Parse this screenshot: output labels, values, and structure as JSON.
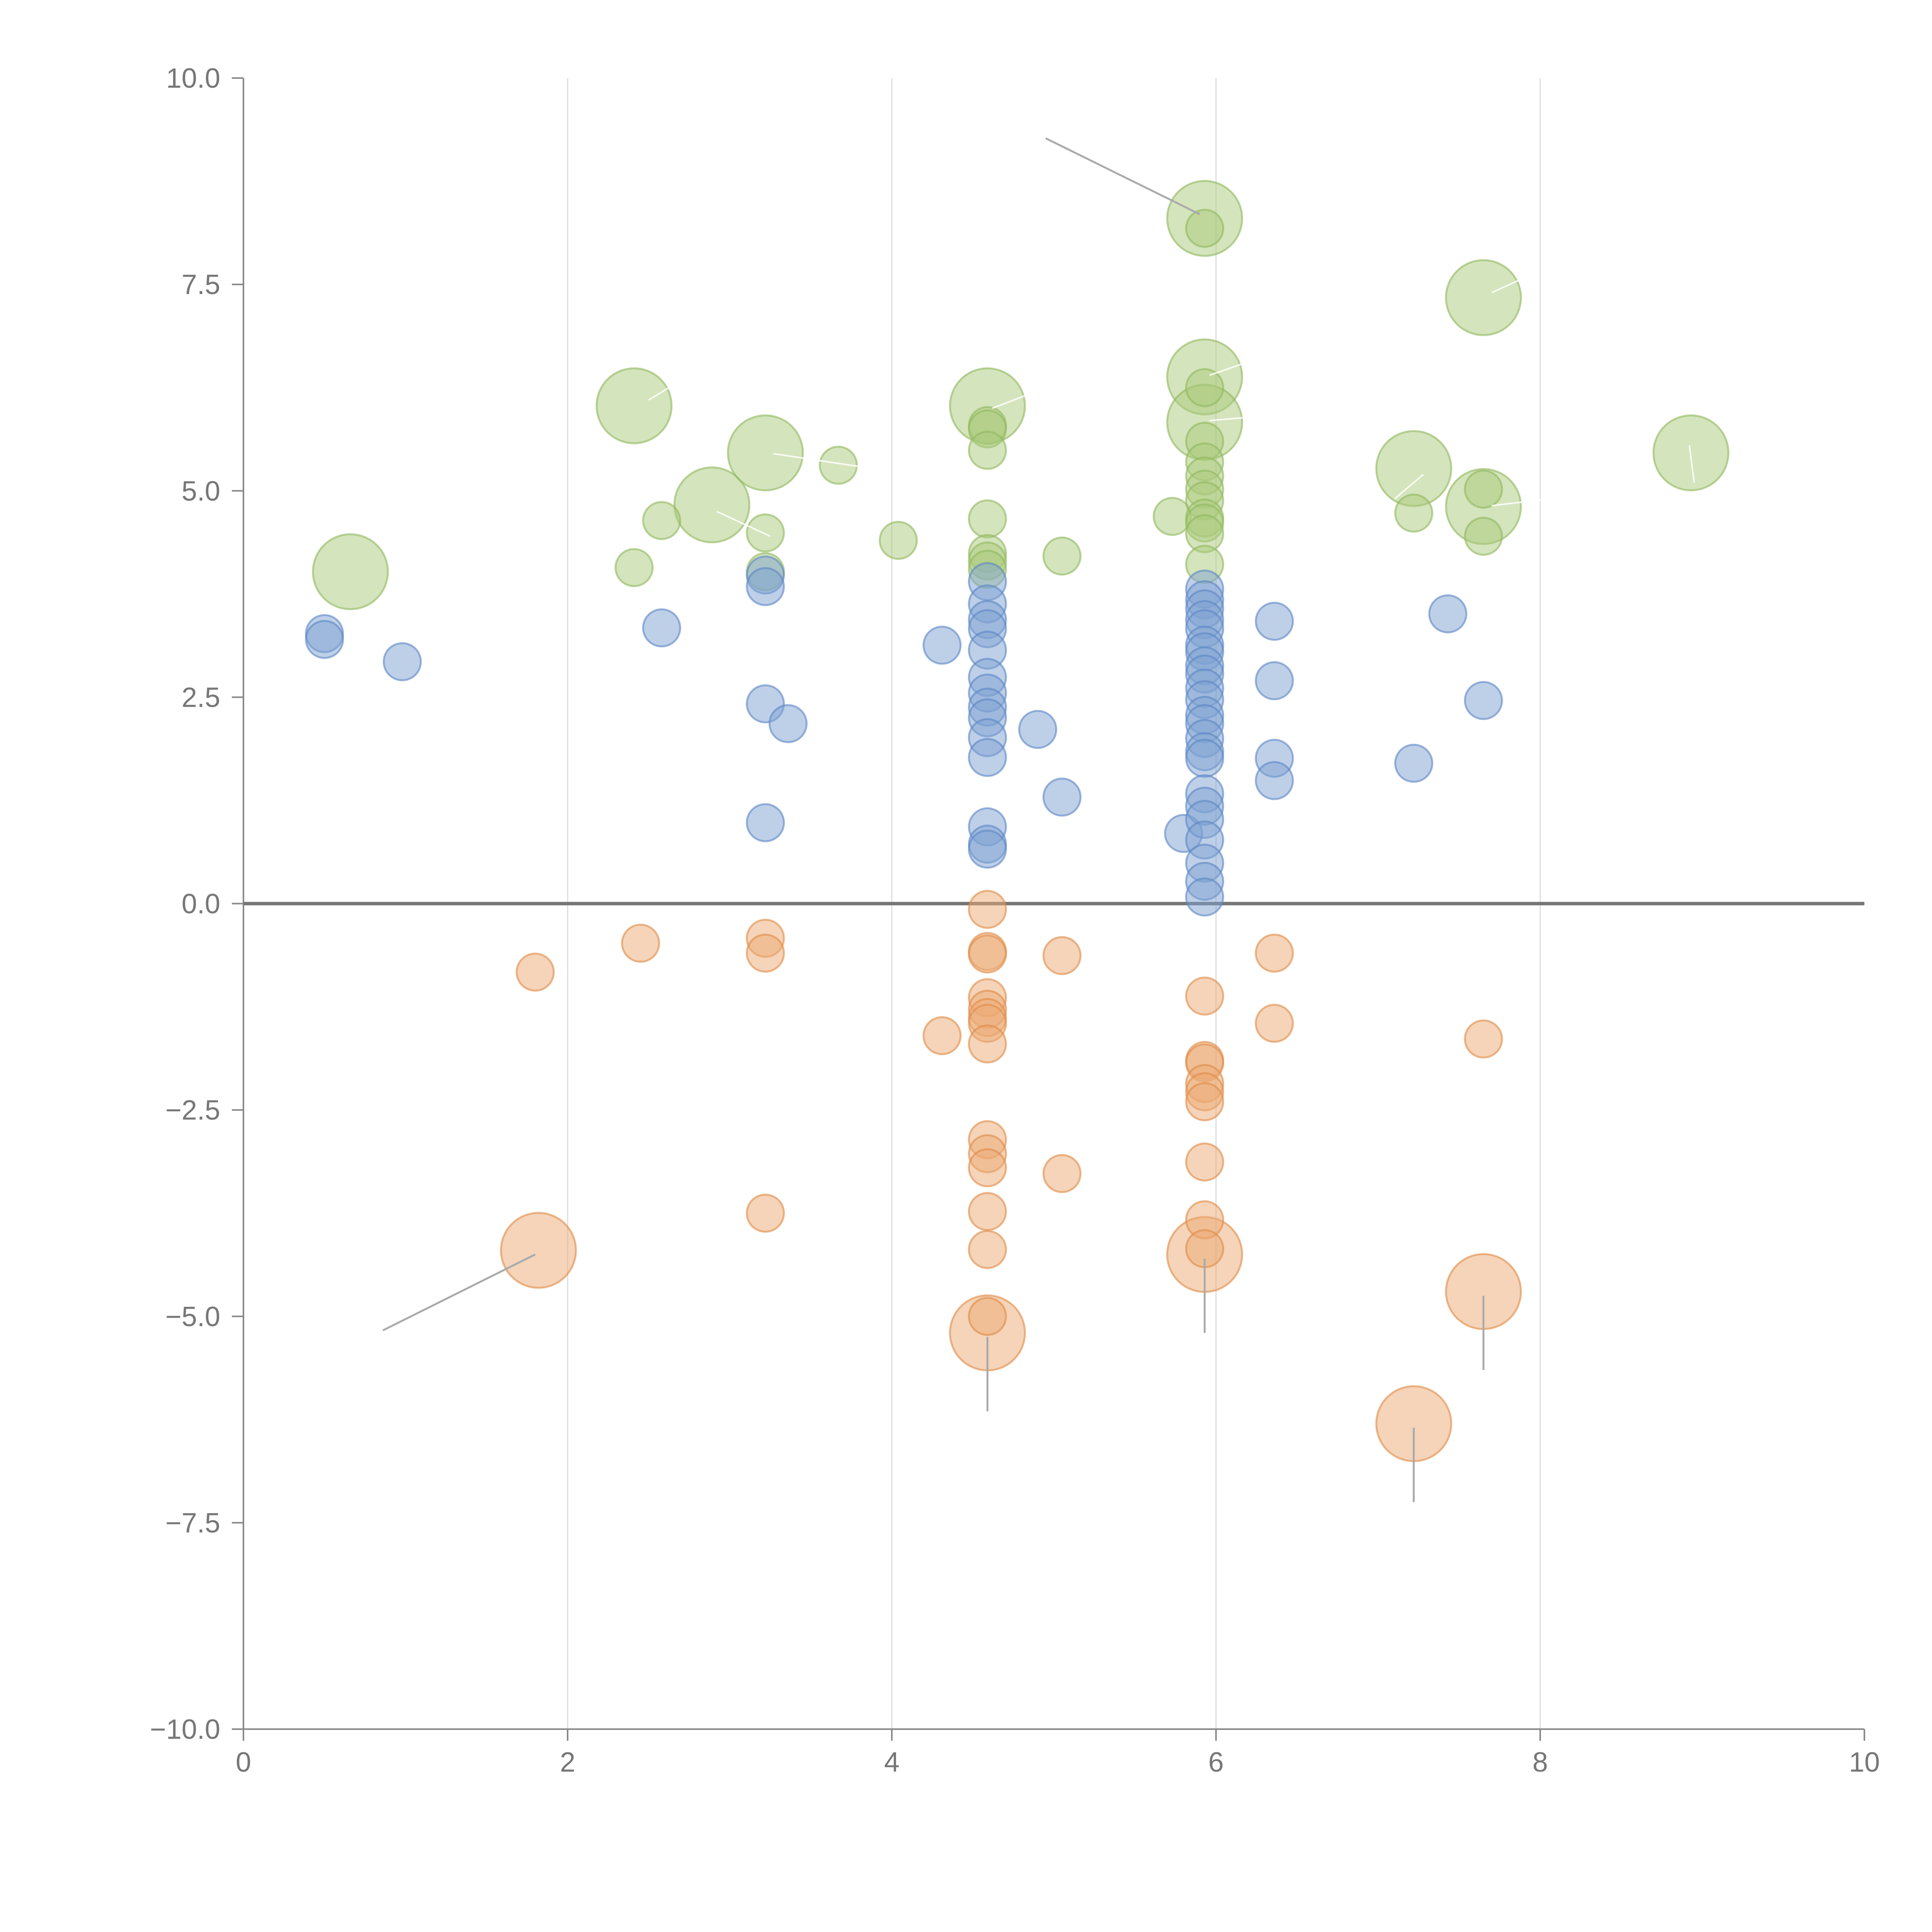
{
  "chart_data": {
    "type": "scatter",
    "title": "",
    "xlabel": "",
    "ylabel": "",
    "xlim": [
      0,
      10
    ],
    "ylim": [
      -10,
      10
    ],
    "grid_x": true,
    "grid_y": false,
    "x_ticks": [
      "0",
      "2",
      "4",
      "6",
      "8",
      "10"
    ],
    "y_ticks": [
      "10.0",
      "7.5",
      "5.0",
      "2.5",
      "0.0",
      "−2.5",
      "−5.0",
      "−7.5",
      "−10.0"
    ],
    "x_tick_values": [
      0,
      2,
      4,
      6,
      8,
      10
    ],
    "y_tick_values": [
      10,
      7.5,
      5,
      2.5,
      0,
      -2.5,
      -5,
      -7.5,
      -10
    ],
    "series": [
      {
        "name": "green",
        "color": "#a9c97a",
        "stroke": "#8fb85e",
        "points": [
          [
            0.66,
            4.02,
            3
          ],
          [
            2.41,
            6.03,
            3
          ],
          [
            2.89,
            4.83,
            3
          ],
          [
            3.22,
            5.46,
            3
          ],
          [
            4.59,
            6.03,
            3
          ],
          [
            5.93,
            8.3,
            3
          ],
          [
            5.93,
            6.38,
            3
          ],
          [
            5.93,
            5.83,
            3
          ],
          [
            7.22,
            5.27,
            3
          ],
          [
            7.65,
            7.34,
            3
          ],
          [
            7.65,
            4.81,
            3
          ],
          [
            8.93,
            5.46,
            3
          ],
          [
            2.41,
            4.07,
            1
          ],
          [
            2.58,
            4.64,
            1
          ],
          [
            3.22,
            4.49,
            1
          ],
          [
            3.22,
            4.02,
            1
          ],
          [
            3.67,
            5.31,
            1
          ],
          [
            4.04,
            4.4,
            1
          ],
          [
            4.59,
            5.79,
            1
          ],
          [
            4.59,
            5.75,
            1
          ],
          [
            4.59,
            5.49,
            1
          ],
          [
            4.59,
            4.66,
            1
          ],
          [
            4.59,
            4.24,
            1
          ],
          [
            4.59,
            4.15,
            1
          ],
          [
            4.59,
            4.05,
            1
          ],
          [
            5.05,
            4.21,
            1
          ],
          [
            5.73,
            4.69,
            1
          ],
          [
            5.93,
            8.18,
            1
          ],
          [
            5.93,
            6.25,
            1
          ],
          [
            5.93,
            5.6,
            1
          ],
          [
            5.93,
            5.35,
            1
          ],
          [
            5.93,
            5.18,
            1
          ],
          [
            5.93,
            5.02,
            1
          ],
          [
            5.93,
            4.88,
            1
          ],
          [
            5.93,
            4.67,
            1
          ],
          [
            5.93,
            4.61,
            1
          ],
          [
            5.93,
            4.48,
            1
          ],
          [
            5.93,
            4.11,
            1
          ],
          [
            7.22,
            4.73,
            1
          ],
          [
            7.65,
            5.02,
            1
          ],
          [
            7.65,
            4.45,
            1
          ]
        ]
      },
      {
        "name": "blue",
        "color": "#7ea1d2",
        "stroke": "#5b85c4",
        "points": [
          [
            0.5,
            3.27,
            1
          ],
          [
            0.5,
            3.2,
            1
          ],
          [
            0.98,
            2.93,
            1
          ],
          [
            2.58,
            3.34,
            1
          ],
          [
            3.22,
            3.98,
            1
          ],
          [
            3.22,
            3.84,
            1
          ],
          [
            3.22,
            2.42,
            1
          ],
          [
            3.36,
            2.18,
            1
          ],
          [
            3.22,
            0.98,
            1
          ],
          [
            4.31,
            3.13,
            1
          ],
          [
            4.59,
            3.9,
            1
          ],
          [
            4.59,
            3.63,
            1
          ],
          [
            4.59,
            3.44,
            1
          ],
          [
            4.59,
            3.33,
            1
          ],
          [
            4.59,
            3.07,
            1
          ],
          [
            4.59,
            2.74,
            1
          ],
          [
            4.59,
            2.55,
            1
          ],
          [
            4.59,
            2.38,
            1
          ],
          [
            4.59,
            2.25,
            1
          ],
          [
            4.59,
            2.01,
            1
          ],
          [
            4.59,
            1.77,
            1
          ],
          [
            4.59,
            0.93,
            1
          ],
          [
            4.59,
            0.72,
            1
          ],
          [
            4.59,
            0.66,
            1
          ],
          [
            4.9,
            2.11,
            1
          ],
          [
            5.05,
            1.29,
            1
          ],
          [
            5.8,
            0.85,
            1
          ],
          [
            5.93,
            3.81,
            1
          ],
          [
            5.93,
            3.68,
            1
          ],
          [
            5.93,
            3.57,
            1
          ],
          [
            5.93,
            3.44,
            1
          ],
          [
            5.93,
            3.33,
            1
          ],
          [
            5.93,
            3.13,
            1
          ],
          [
            5.93,
            3.05,
            1
          ],
          [
            5.93,
            2.88,
            1
          ],
          [
            5.93,
            2.78,
            1
          ],
          [
            5.93,
            2.61,
            1
          ],
          [
            5.93,
            2.47,
            1
          ],
          [
            5.93,
            2.28,
            1
          ],
          [
            5.93,
            2.18,
            1
          ],
          [
            5.93,
            2.0,
            1
          ],
          [
            5.93,
            1.84,
            1
          ],
          [
            5.93,
            1.76,
            1
          ],
          [
            5.93,
            1.33,
            1
          ],
          [
            5.93,
            1.18,
            1
          ],
          [
            5.93,
            1.02,
            1
          ],
          [
            5.93,
            0.77,
            1
          ],
          [
            5.93,
            0.49,
            1
          ],
          [
            5.93,
            0.27,
            1
          ],
          [
            5.93,
            0.08,
            1
          ],
          [
            6.36,
            3.42,
            1
          ],
          [
            6.36,
            2.7,
            1
          ],
          [
            6.36,
            1.76,
            1
          ],
          [
            6.36,
            1.49,
            1
          ],
          [
            7.22,
            1.7,
            1
          ],
          [
            7.43,
            3.51,
            1
          ],
          [
            7.65,
            2.46,
            1
          ]
        ]
      },
      {
        "name": "orange",
        "color": "#eba974",
        "stroke": "#e08a45",
        "points": [
          [
            1.82,
            -4.2,
            3
          ],
          [
            4.59,
            -5.2,
            3
          ],
          [
            5.93,
            -4.25,
            3
          ],
          [
            7.65,
            -4.7,
            3
          ],
          [
            7.22,
            -6.3,
            3
          ],
          [
            1.8,
            -0.83,
            1
          ],
          [
            2.45,
            -0.48,
            1
          ],
          [
            3.22,
            -0.42,
            1
          ],
          [
            3.22,
            -0.6,
            1
          ],
          [
            3.22,
            -3.75,
            1
          ],
          [
            4.31,
            -1.6,
            1
          ],
          [
            4.59,
            -0.07,
            1
          ],
          [
            4.59,
            -0.58,
            1
          ],
          [
            4.59,
            -0.61,
            1
          ],
          [
            4.59,
            -1.14,
            1
          ],
          [
            4.59,
            -1.28,
            1
          ],
          [
            4.59,
            -1.38,
            1
          ],
          [
            4.59,
            -1.45,
            1
          ],
          [
            4.59,
            -1.7,
            1
          ],
          [
            4.59,
            -2.86,
            1
          ],
          [
            4.59,
            -3.03,
            1
          ],
          [
            4.59,
            -3.2,
            1
          ],
          [
            4.59,
            -3.73,
            1
          ],
          [
            4.59,
            -4.19,
            1
          ],
          [
            4.59,
            -5.0,
            1
          ],
          [
            5.05,
            -0.63,
            1
          ],
          [
            5.05,
            -3.27,
            1
          ],
          [
            5.93,
            -1.12,
            1
          ],
          [
            5.93,
            -1.9,
            1
          ],
          [
            5.93,
            -1.93,
            1
          ],
          [
            5.93,
            -2.18,
            1
          ],
          [
            5.93,
            -2.28,
            1
          ],
          [
            5.93,
            -2.4,
            1
          ],
          [
            5.93,
            -3.13,
            1
          ],
          [
            5.93,
            -3.83,
            1
          ],
          [
            5.93,
            -4.18,
            1
          ],
          [
            6.36,
            -0.6,
            1
          ],
          [
            6.36,
            -1.45,
            1
          ],
          [
            7.65,
            -1.64,
            1
          ]
        ]
      }
    ],
    "annotation_lines": [
      {
        "from": [
          5.9,
          8.35
        ],
        "to": [
          4.95,
          9.27
        ],
        "color": "gray"
      },
      {
        "from": [
          1.8,
          -4.25
        ],
        "to": [
          0.86,
          -5.17
        ],
        "color": "gray"
      },
      {
        "from": [
          4.59,
          -5.25
        ],
        "to": [
          4.59,
          -6.15
        ],
        "color": "gray"
      },
      {
        "from": [
          5.93,
          -4.3
        ],
        "to": [
          5.93,
          -5.2
        ],
        "color": "gray"
      },
      {
        "from": [
          7.65,
          -4.75
        ],
        "to": [
          7.65,
          -5.65
        ],
        "color": "gray"
      },
      {
        "from": [
          7.22,
          -6.35
        ],
        "to": [
          7.22,
          -7.25
        ],
        "color": "gray"
      },
      {
        "from": [
          2.5,
          6.1
        ],
        "to": [
          2.65,
          6.28
        ],
        "color": "white"
      },
      {
        "from": [
          2.92,
          4.75
        ],
        "to": [
          3.25,
          4.45
        ],
        "color": "white"
      },
      {
        "from": [
          3.27,
          5.45
        ],
        "to": [
          3.95,
          5.25
        ],
        "color": "white"
      },
      {
        "from": [
          4.62,
          6.0
        ],
        "to": [
          4.95,
          6.25
        ],
        "color": "white"
      },
      {
        "from": [
          5.96,
          6.4
        ],
        "to": [
          6.18,
          6.55
        ],
        "color": "white"
      },
      {
        "from": [
          5.96,
          5.85
        ],
        "to": [
          6.25,
          5.9
        ],
        "color": "white"
      },
      {
        "from": [
          7.1,
          4.9
        ],
        "to": [
          7.28,
          5.2
        ],
        "color": "white"
      },
      {
        "from": [
          7.7,
          7.4
        ],
        "to": [
          7.98,
          7.65
        ],
        "color": "white"
      },
      {
        "from": [
          7.7,
          4.82
        ],
        "to": [
          8.05,
          4.9
        ],
        "color": "white"
      },
      {
        "from": [
          8.92,
          5.55
        ],
        "to": [
          8.95,
          5.1
        ],
        "color": "white"
      }
    ]
  }
}
